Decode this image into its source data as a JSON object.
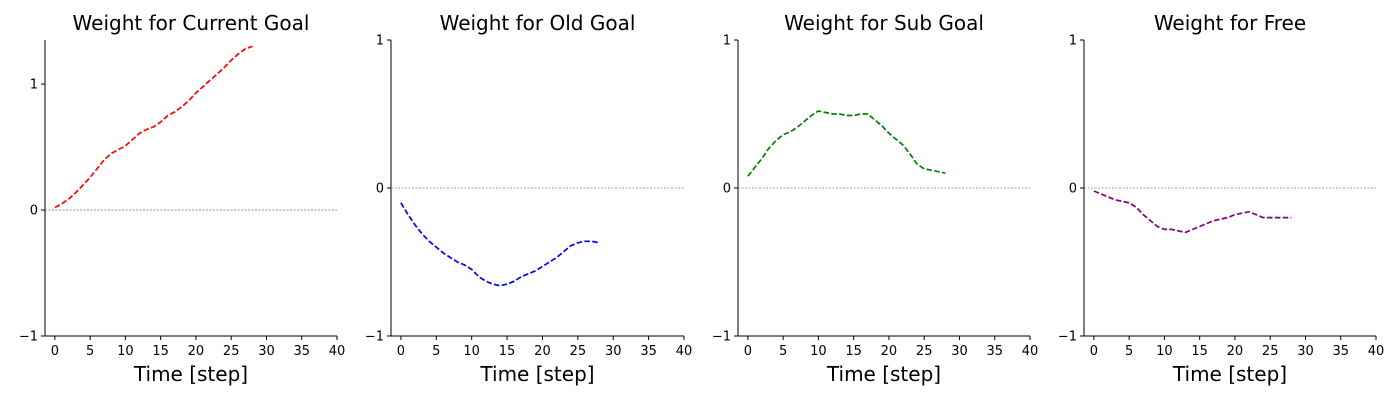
{
  "chart_data": [
    {
      "type": "line",
      "title": "Weight for Current Goal",
      "xlabel": "Time [step]",
      "ylabel": "",
      "xlim": [
        -1.4,
        40
      ],
      "ylim": [
        -1,
        1.35
      ],
      "xticks": [
        "0",
        "5",
        "10",
        "15",
        "20",
        "25",
        "30",
        "35",
        "40"
      ],
      "yticks": [
        "−1",
        "0",
        "1"
      ],
      "color": "#ff0000",
      "zero_line": true,
      "x": [
        0,
        1,
        2,
        3,
        4,
        5,
        6,
        7,
        8,
        9,
        10,
        11,
        12,
        13,
        14,
        15,
        16,
        17,
        18,
        19,
        20,
        21,
        22,
        23,
        24,
        25,
        26,
        27,
        28
      ],
      "y": [
        0.02,
        0.05,
        0.09,
        0.14,
        0.2,
        0.26,
        0.33,
        0.4,
        0.45,
        0.48,
        0.51,
        0.56,
        0.61,
        0.64,
        0.66,
        0.7,
        0.75,
        0.78,
        0.82,
        0.87,
        0.93,
        0.98,
        1.03,
        1.08,
        1.13,
        1.19,
        1.24,
        1.28,
        1.3
      ]
    },
    {
      "type": "line",
      "title": "Weight for Old Goal",
      "xlabel": "Time [step]",
      "ylabel": "",
      "xlim": [
        -1.4,
        40
      ],
      "ylim": [
        -1,
        1
      ],
      "xticks": [
        "0",
        "5",
        "10",
        "15",
        "20",
        "25",
        "30",
        "35",
        "40"
      ],
      "yticks": [
        "−1",
        "0",
        "1"
      ],
      "color": "#0000ff",
      "zero_line": true,
      "x": [
        0,
        1,
        2,
        3,
        4,
        5,
        6,
        7,
        8,
        9,
        10,
        11,
        12,
        13,
        14,
        15,
        16,
        17,
        18,
        19,
        20,
        21,
        22,
        23,
        24,
        25,
        26,
        27,
        28
      ],
      "y": [
        -0.1,
        -0.18,
        -0.25,
        -0.31,
        -0.36,
        -0.4,
        -0.44,
        -0.47,
        -0.5,
        -0.52,
        -0.55,
        -0.6,
        -0.63,
        -0.65,
        -0.66,
        -0.65,
        -0.63,
        -0.6,
        -0.58,
        -0.56,
        -0.53,
        -0.5,
        -0.47,
        -0.43,
        -0.39,
        -0.37,
        -0.36,
        -0.36,
        -0.37
      ]
    },
    {
      "type": "line",
      "title": "Weight for Sub Goal",
      "xlabel": "Time [step]",
      "ylabel": "",
      "xlim": [
        -1.4,
        40
      ],
      "ylim": [
        -1,
        1
      ],
      "xticks": [
        "0",
        "5",
        "10",
        "15",
        "20",
        "25",
        "30",
        "35",
        "40"
      ],
      "yticks": [
        "−1",
        "0",
        "1"
      ],
      "color": "#008000",
      "zero_line": true,
      "x": [
        0,
        1,
        2,
        3,
        4,
        5,
        6,
        7,
        8,
        9,
        10,
        11,
        12,
        13,
        14,
        15,
        16,
        17,
        18,
        19,
        20,
        21,
        22,
        23,
        24,
        25,
        26,
        27,
        28
      ],
      "y": [
        0.08,
        0.14,
        0.2,
        0.27,
        0.32,
        0.36,
        0.38,
        0.41,
        0.45,
        0.49,
        0.52,
        0.51,
        0.5,
        0.5,
        0.49,
        0.49,
        0.5,
        0.5,
        0.46,
        0.42,
        0.37,
        0.33,
        0.29,
        0.23,
        0.16,
        0.13,
        0.12,
        0.11,
        0.1
      ]
    },
    {
      "type": "line",
      "title": "Weight for Free",
      "xlabel": "Time [step]",
      "ylabel": "",
      "xlim": [
        -1.4,
        40
      ],
      "ylim": [
        -1,
        1
      ],
      "xticks": [
        "0",
        "5",
        "10",
        "15",
        "20",
        "25",
        "30",
        "35",
        "40"
      ],
      "yticks": [
        "−1",
        "0",
        "1"
      ],
      "color": "#800080",
      "zero_line": true,
      "x": [
        0,
        1,
        2,
        3,
        4,
        5,
        6,
        7,
        8,
        9,
        10,
        11,
        12,
        13,
        14,
        15,
        16,
        17,
        18,
        19,
        20,
        21,
        22,
        23,
        24,
        25,
        26,
        27,
        28
      ],
      "y": [
        -0.02,
        -0.04,
        -0.06,
        -0.08,
        -0.09,
        -0.1,
        -0.13,
        -0.18,
        -0.22,
        -0.26,
        -0.28,
        -0.28,
        -0.29,
        -0.3,
        -0.28,
        -0.26,
        -0.24,
        -0.22,
        -0.21,
        -0.2,
        -0.18,
        -0.17,
        -0.16,
        -0.18,
        -0.2,
        -0.2,
        -0.2,
        -0.2,
        -0.2
      ]
    }
  ]
}
